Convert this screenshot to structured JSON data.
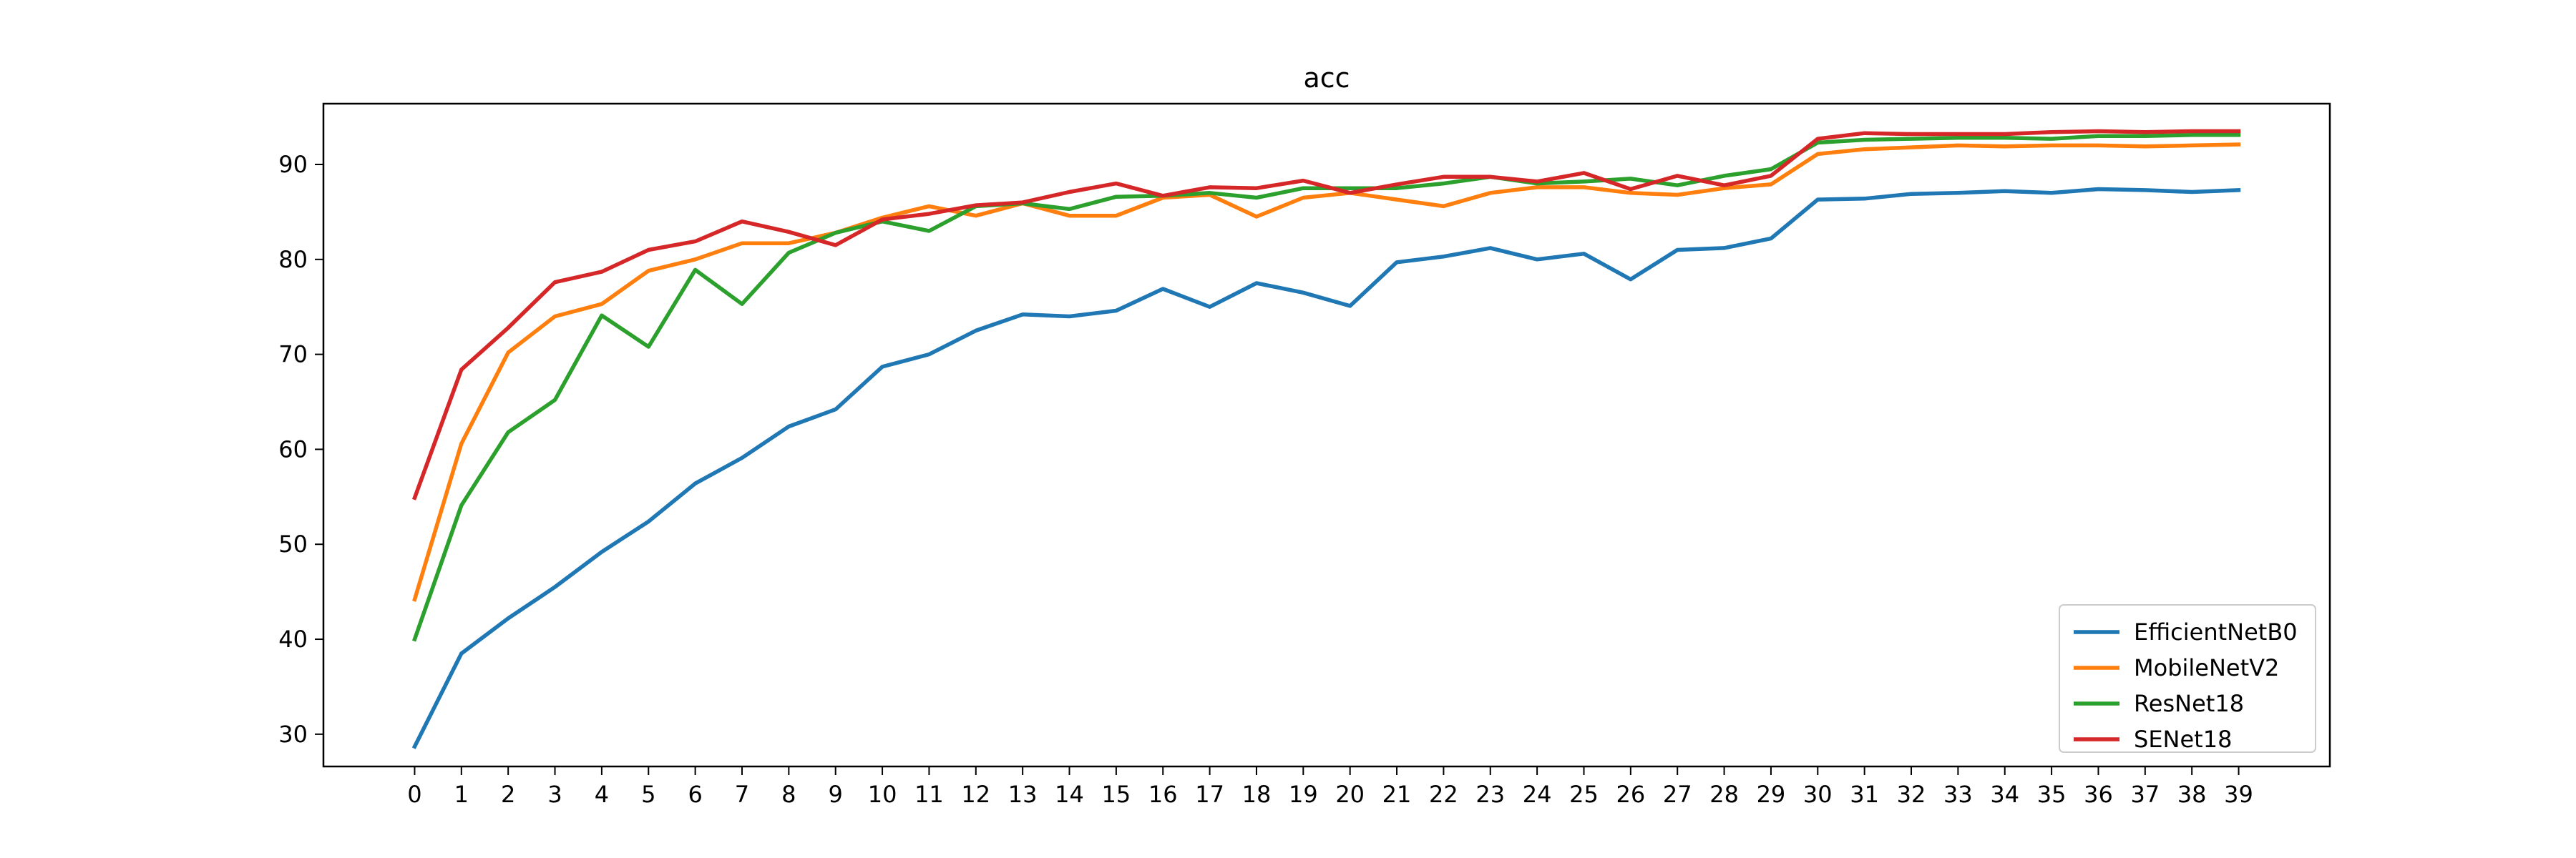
{
  "chart_data": {
    "type": "line",
    "title": "acc",
    "xlabel": "",
    "ylabel": "",
    "x": [
      0,
      1,
      2,
      3,
      4,
      5,
      6,
      7,
      8,
      9,
      10,
      11,
      12,
      13,
      14,
      15,
      16,
      17,
      18,
      19,
      20,
      21,
      22,
      23,
      24,
      25,
      26,
      27,
      28,
      29,
      30,
      31,
      32,
      33,
      34,
      35,
      36,
      37,
      38,
      39
    ],
    "xlim": [
      -1.95,
      40.95
    ],
    "ylim": [
      26.6,
      96.4
    ],
    "yticks": [
      30,
      40,
      50,
      60,
      70,
      80,
      90
    ],
    "grid": false,
    "legend_position": "lower-right",
    "series": [
      {
        "name": "EfficientNetB0",
        "color": "#1f77b4",
        "values": [
          28.7,
          38.5,
          42.2,
          45.5,
          49.2,
          52.4,
          56.4,
          59.1,
          62.4,
          64.2,
          68.7,
          70.0,
          72.5,
          74.2,
          74.0,
          74.6,
          76.9,
          75.0,
          77.5,
          76.5,
          75.1,
          79.7,
          80.3,
          81.2,
          80.0,
          80.6,
          77.9,
          81.0,
          81.2,
          82.2,
          86.3,
          86.4,
          86.9,
          87.0,
          87.2,
          87.0,
          87.4,
          87.3,
          87.1,
          87.3
        ]
      },
      {
        "name": "MobileNetV2",
        "color": "#ff7f0e",
        "values": [
          44.2,
          60.6,
          70.2,
          74.0,
          75.3,
          78.8,
          80.0,
          81.7,
          81.7,
          82.8,
          84.4,
          85.6,
          84.6,
          85.9,
          84.6,
          84.6,
          86.5,
          86.8,
          84.5,
          86.5,
          87.0,
          86.3,
          85.6,
          87.0,
          87.6,
          87.6,
          87.0,
          86.8,
          87.5,
          87.9,
          91.1,
          91.6,
          91.8,
          92.0,
          91.9,
          92.0,
          92.0,
          91.9,
          92.0,
          92.1
        ]
      },
      {
        "name": "ResNet18",
        "color": "#2ca02c",
        "values": [
          40.0,
          54.1,
          61.8,
          65.2,
          74.1,
          70.8,
          78.9,
          75.3,
          80.7,
          82.8,
          84.0,
          83.0,
          85.6,
          85.9,
          85.3,
          86.6,
          86.7,
          87.0,
          86.5,
          87.5,
          87.5,
          87.5,
          88.0,
          88.7,
          88.0,
          88.2,
          88.5,
          87.8,
          88.8,
          89.5,
          92.3,
          92.6,
          92.7,
          92.8,
          92.8,
          92.7,
          93.0,
          93.0,
          93.1,
          93.1
        ]
      },
      {
        "name": "SENet18",
        "color": "#d62728",
        "values": [
          54.9,
          68.4,
          72.8,
          77.6,
          78.7,
          81.0,
          81.9,
          84.0,
          82.9,
          81.5,
          84.2,
          84.8,
          85.7,
          86.0,
          87.1,
          88.0,
          86.7,
          87.6,
          87.5,
          88.3,
          87.0,
          87.9,
          88.7,
          88.7,
          88.2,
          89.1,
          87.4,
          88.8,
          87.8,
          88.8,
          92.7,
          93.3,
          93.2,
          93.2,
          93.2,
          93.4,
          93.5,
          93.4,
          93.5,
          93.5
        ]
      }
    ]
  }
}
